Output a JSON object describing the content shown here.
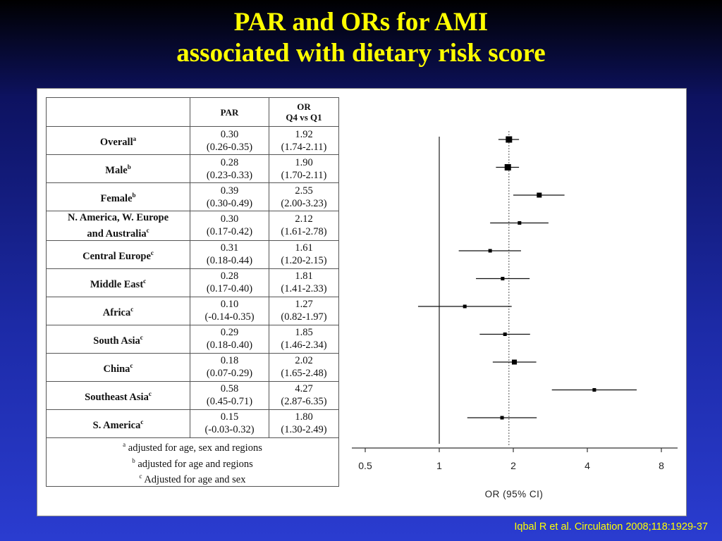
{
  "slide": {
    "title_line1": "PAR and ORs for AMI",
    "title_line2": "associated with dietary risk score",
    "citation": "Iqbal R et al. Circulation 2008;118:1929-37"
  },
  "table": {
    "col_par": "PAR",
    "col_or_line1": "OR",
    "col_or_line2": "Q4 vs Q1",
    "rows": [
      {
        "label": "Overall",
        "label2": "",
        "sup": "a",
        "par": "0.30",
        "par_ci": "(0.26-0.35)",
        "or": "1.92",
        "or_ci": "(1.74-2.11)"
      },
      {
        "label": "Male",
        "label2": "",
        "sup": "b",
        "par": "0.28",
        "par_ci": "(0.23-0.33)",
        "or": "1.90",
        "or_ci": "(1.70-2.11)"
      },
      {
        "label": "Female",
        "label2": "",
        "sup": "b",
        "par": "0.39",
        "par_ci": "(0.30-0.49)",
        "or": "2.55",
        "or_ci": "(2.00-3.23)"
      },
      {
        "label": "N. America, W. Europe",
        "label2": "and Australia",
        "sup": "c",
        "par": "0.30",
        "par_ci": "(0.17-0.42)",
        "or": "2.12",
        "or_ci": "(1.61-2.78)"
      },
      {
        "label": "Central Europe",
        "label2": "",
        "sup": "c",
        "par": "0.31",
        "par_ci": "(0.18-0.44)",
        "or": "1.61",
        "or_ci": "(1.20-2.15)"
      },
      {
        "label": "Middle East",
        "label2": "",
        "sup": "c",
        "par": "0.28",
        "par_ci": "(0.17-0.40)",
        "or": "1.81",
        "or_ci": "(1.41-2.33)"
      },
      {
        "label": "Africa",
        "label2": "",
        "sup": "c",
        "par": "0.10",
        "par_ci": "(-0.14-0.35)",
        "or": "1.27",
        "or_ci": "(0.82-1.97)"
      },
      {
        "label": "South Asia",
        "label2": "",
        "sup": "c",
        "par": "0.29",
        "par_ci": "(0.18-0.40)",
        "or": "1.85",
        "or_ci": "(1.46-2.34)"
      },
      {
        "label": "China",
        "label2": "",
        "sup": "c",
        "par": "0.18",
        "par_ci": "(0.07-0.29)",
        "or": "2.02",
        "or_ci": "(1.65-2.48)"
      },
      {
        "label": "Southeast Asia",
        "label2": "",
        "sup": "c",
        "par": "0.58",
        "par_ci": "(0.45-0.71)",
        "or": "4.27",
        "or_ci": "(2.87-6.35)"
      },
      {
        "label": "S. America",
        "label2": "",
        "sup": "c",
        "par": "0.15",
        "par_ci": "(-0.03-0.32)",
        "or": "1.80",
        "or_ci": "(1.30-2.49)"
      }
    ],
    "footnotes": [
      {
        "sup": "a",
        "text": "adjusted for age, sex and regions"
      },
      {
        "sup": "b",
        "text": "adjusted for age and regions"
      },
      {
        "sup": "c",
        "text": "Adjusted for age and sex"
      }
    ]
  },
  "chart_data": {
    "type": "forest",
    "xlabel": "OR (95% CI)",
    "x_scale": "log",
    "xlim": [
      0.5,
      10
    ],
    "xticks": [
      0.5,
      1,
      2,
      4,
      8
    ],
    "xtick_labels": [
      "0.5",
      "1",
      "2",
      "4",
      "8"
    ],
    "null_line": 1,
    "overall_reference_line": 1.92,
    "categories": [
      "Overall",
      "Male",
      "Female",
      "N. America, W. Europe and Australia",
      "Central Europe",
      "Middle East",
      "Africa",
      "South Asia",
      "China",
      "Southeast Asia",
      "S. America"
    ],
    "estimates": [
      1.92,
      1.9,
      2.55,
      2.12,
      1.61,
      1.81,
      1.27,
      1.85,
      2.02,
      4.27,
      1.8
    ],
    "lower": [
      1.74,
      1.7,
      2.0,
      1.61,
      1.2,
      1.41,
      0.82,
      1.46,
      1.65,
      2.87,
      1.3
    ],
    "upper": [
      2.11,
      2.11,
      3.23,
      2.78,
      2.15,
      2.33,
      1.97,
      2.34,
      2.48,
      6.35,
      2.49
    ],
    "marker_weight": [
      "large",
      "large",
      "medium",
      "small",
      "small",
      "small",
      "small",
      "small",
      "medium",
      "small",
      "small"
    ]
  }
}
